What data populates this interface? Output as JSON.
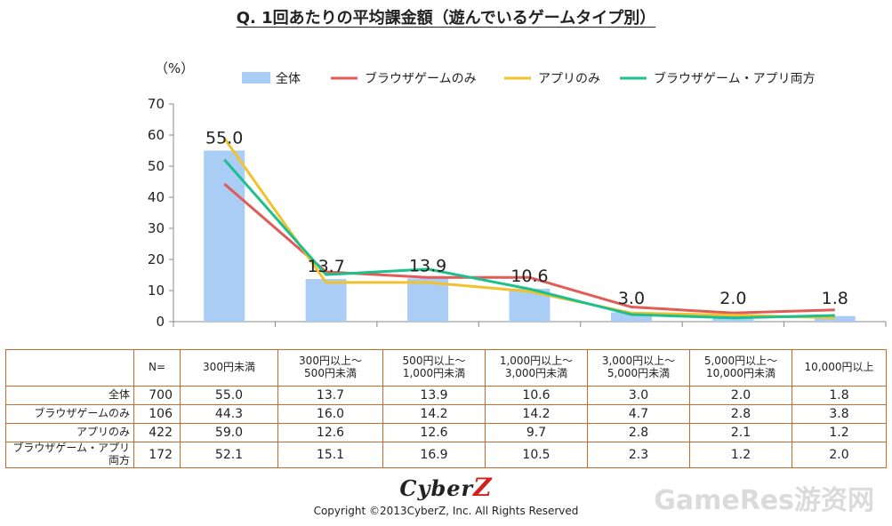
{
  "title": "Q. 1回あたりの平均課金額（遊んでいるゲームタイプ別）",
  "chart_data": {
    "type": "bar+line",
    "unit_label": "（%）",
    "categories": [
      "300円未満",
      "300円以上～500円未満",
      "500円以上～1,000円未満",
      "1,000円以上～3,000円未満",
      "3,000円以上～5,000円未満",
      "5,000円以上～10,000円未満",
      "10,000円以上"
    ],
    "ylim": [
      0,
      70
    ],
    "yticks": [
      0,
      10,
      20,
      30,
      40,
      50,
      60,
      70
    ],
    "grid": false,
    "legend_position": "top",
    "bar_series": {
      "name": "全体",
      "values": [
        55.0,
        13.7,
        13.9,
        10.6,
        3.0,
        2.0,
        1.8
      ],
      "labels": [
        "55.0",
        "13.7",
        "13.9",
        "10.6",
        "3.0",
        "2.0",
        "1.8"
      ],
      "color": "#a9cdf4"
    },
    "line_series": [
      {
        "name": "ブラウザゲームのみ",
        "values": [
          44.3,
          16.0,
          14.2,
          14.2,
          4.7,
          2.8,
          3.8
        ],
        "color": "#e15b57"
      },
      {
        "name": "アプリのみ",
        "values": [
          59.0,
          12.6,
          12.6,
          9.7,
          2.8,
          2.1,
          1.2
        ],
        "color": "#f2c12e"
      },
      {
        "name": "ブラウザゲーム・アプリ両方",
        "values": [
          52.1,
          15.1,
          16.9,
          10.5,
          2.3,
          1.2,
          2.0
        ],
        "color": "#1dbf8e"
      }
    ]
  },
  "table": {
    "header": [
      "",
      "N=",
      "300円未満",
      "300円以上～\n500円未満",
      "500円以上～\n1,000円未満",
      "1,000円以上～\n3,000円未満",
      "3,000円以上～\n5,000円未満",
      "5,000円以上～\n10,000円未満",
      "10,000円以上"
    ],
    "rows": [
      {
        "label": "全体",
        "n": "700",
        "values": [
          "55.0",
          "13.7",
          "13.9",
          "10.6",
          "3.0",
          "2.0",
          "1.8"
        ]
      },
      {
        "label": "ブラウザゲームのみ",
        "n": "106",
        "values": [
          "44.3",
          "16.0",
          "14.2",
          "14.2",
          "4.7",
          "2.8",
          "3.8"
        ]
      },
      {
        "label": "アプリのみ",
        "n": "422",
        "values": [
          "59.0",
          "12.6",
          "12.6",
          "9.7",
          "2.8",
          "2.1",
          "1.2"
        ]
      },
      {
        "label": "ブラウザゲーム・アプリ両方",
        "n": "172",
        "values": [
          "52.1",
          "15.1",
          "16.9",
          "10.5",
          "2.3",
          "1.2",
          "2.0"
        ]
      }
    ]
  },
  "logo": {
    "main": "Cyber",
    "accent": "Z"
  },
  "copyright": "Copyright ©2013CyberZ, Inc.  All Rights Reserved",
  "watermark": "GameRes游资网"
}
